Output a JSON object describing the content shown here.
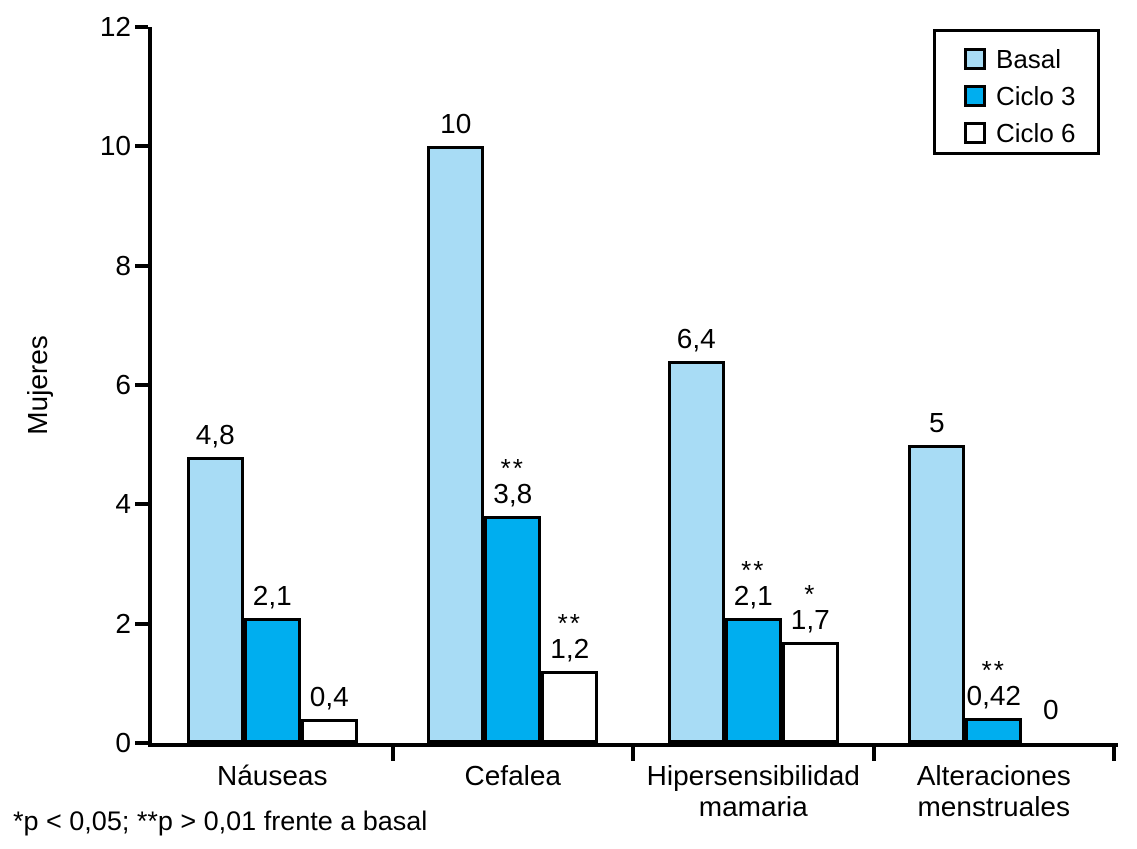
{
  "figure": {
    "footnote": "*p < 0,05; **p > 0,01 frente a basal"
  },
  "legend": {
    "items": [
      {
        "label": "Basal",
        "color": "#a8dcf5"
      },
      {
        "label": "Ciclo 3",
        "color": "#00aeef"
      },
      {
        "label": "Ciclo 6",
        "color": "#ffffff"
      }
    ]
  },
  "chart_data": {
    "type": "bar",
    "title": "",
    "xlabel": "",
    "ylabel": "Mujeres",
    "ylim": [
      0,
      12
    ],
    "yticks": [
      0,
      2,
      4,
      6,
      8,
      10,
      12
    ],
    "grid": false,
    "legend_position": "top-right",
    "categories": [
      "Náuseas",
      "Cefalea",
      "Hipersensibilidad mamaria",
      "Alteraciones menstruales"
    ],
    "category_label_lines": [
      [
        "Náuseas"
      ],
      [
        "Cefalea"
      ],
      [
        "Hipersensibilidad",
        "mamaria"
      ],
      [
        "Alteraciones",
        "menstruales"
      ]
    ],
    "series": [
      {
        "name": "Basal",
        "color": "#a8dcf5",
        "values": [
          4.8,
          10,
          6.4,
          5
        ],
        "value_labels": [
          "4,8",
          "10",
          "6,4",
          "5"
        ],
        "sig_marks": [
          "",
          "",
          "",
          ""
        ]
      },
      {
        "name": "Ciclo 3",
        "color": "#00aeef",
        "values": [
          2.1,
          3.8,
          2.1,
          0.42
        ],
        "value_labels": [
          "2,1",
          "3,8",
          "2,1",
          "0,42"
        ],
        "sig_marks": [
          "",
          "**",
          "**",
          "**"
        ]
      },
      {
        "name": "Ciclo 6",
        "color": "#ffffff",
        "values": [
          0.4,
          1.2,
          1.7,
          0
        ],
        "value_labels": [
          "0,4",
          "1,2",
          "1,7",
          "0"
        ],
        "sig_marks": [
          "",
          "**",
          "*",
          ""
        ]
      }
    ]
  }
}
